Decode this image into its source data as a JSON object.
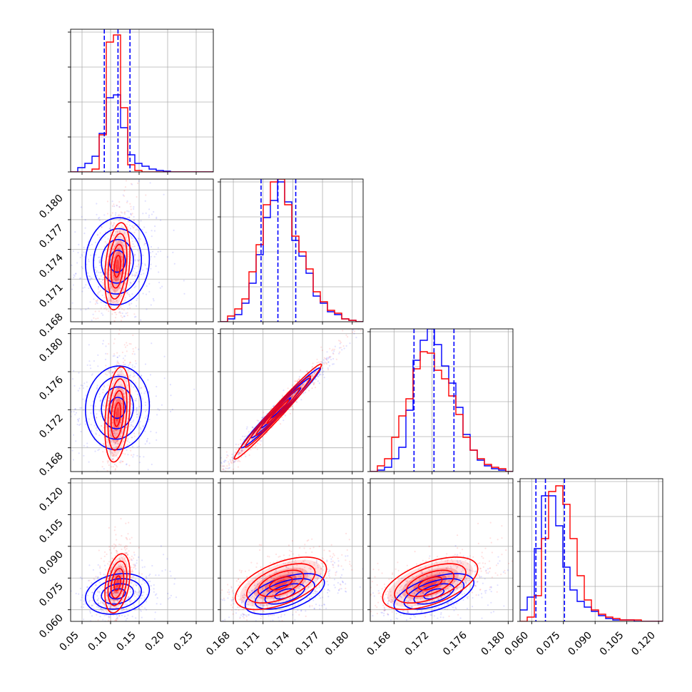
{
  "chart_data": {
    "type": "corner",
    "title": "",
    "grid": true,
    "legend": "none",
    "colors": {
      "blue": "#0000ff",
      "red": "#ff0000",
      "grid": "#b0b0b0"
    },
    "series": [
      {
        "color": "#0000ff"
      },
      {
        "color": "#ff0000"
      }
    ],
    "parameters": [
      {
        "range": [
          0.03,
          0.28
        ],
        "ticks": [
          "0.05",
          "0.10",
          "0.15",
          "0.20",
          "0.25"
        ],
        "tick_values": [
          0.05,
          0.1,
          0.15,
          0.2,
          0.25
        ],
        "quantiles": [
          0.089,
          0.113,
          0.134
        ],
        "hist_edges": [
          0.03,
          0.0425,
          0.055,
          0.0675,
          0.08,
          0.0925,
          0.105,
          0.1175,
          0.13,
          0.1425,
          0.155,
          0.1675,
          0.18,
          0.1925,
          0.205,
          0.2175,
          0.23,
          0.2425,
          0.255,
          0.2675,
          0.28
        ],
        "hist": [
          {
            "color": "blue",
            "counts": [
              0,
              0.03,
              0.06,
              0.11,
              0.27,
              0.52,
              0.54,
              0.31,
              0.12,
              0.06,
              0.04,
              0.02,
              0.01,
              0.005,
              0,
              0,
              0,
              0,
              0,
              0
            ]
          },
          {
            "color": "red",
            "counts": [
              0,
              0,
              0,
              0.02,
              0.26,
              0.91,
              0.96,
              0.45,
              0.05,
              0.01,
              0,
              0,
              0,
              0,
              0,
              0,
              0,
              0,
              0,
              0
            ]
          }
        ]
      },
      {
        "range": [
          0.1667,
          0.1811
        ],
        "ticks": [
          "0.168",
          "0.171",
          "0.174",
          "0.177",
          "0.180"
        ],
        "tick_values": [
          0.168,
          0.171,
          0.174,
          0.177,
          0.18
        ],
        "quantiles": [
          0.1708,
          0.1725,
          0.1743
        ],
        "hist_edges": [
          0.1667,
          0.16742,
          0.16814,
          0.16886,
          0.16958,
          0.1703,
          0.17102,
          0.17174,
          0.17246,
          0.17318,
          0.1739,
          0.17462,
          0.17534,
          0.17606,
          0.17678,
          0.1775,
          0.17822,
          0.17894,
          0.17966,
          0.18038,
          0.1811
        ],
        "hist": [
          {
            "color": "blue",
            "counts": [
              0,
              0.02,
              0.05,
              0.13,
              0.27,
              0.47,
              0.73,
              0.85,
              0.98,
              0.84,
              0.57,
              0.46,
              0.34,
              0.18,
              0.13,
              0.07,
              0.05,
              0.02,
              0.01,
              0
            ]
          },
          {
            "color": "red",
            "counts": [
              0,
              0.04,
              0.09,
              0.16,
              0.35,
              0.54,
              0.82,
              0.98,
              1.0,
              0.82,
              0.6,
              0.49,
              0.37,
              0.21,
              0.14,
              0.08,
              0.06,
              0.02,
              0.01,
              0
            ]
          }
        ]
      },
      {
        "range": [
          0.1655,
          0.1805
        ],
        "ticks": [
          "0.168",
          "0.172",
          "0.176",
          "0.180"
        ],
        "tick_values": [
          0.168,
          0.172,
          0.176,
          0.18
        ],
        "quantiles": [
          0.1701,
          0.1722,
          0.1743
        ],
        "hist_edges": [
          0.1655,
          0.16625,
          0.167,
          0.16775,
          0.1685,
          0.16925,
          0.17,
          0.17075,
          0.1715,
          0.17225,
          0.173,
          0.17375,
          0.1745,
          0.17525,
          0.176,
          0.17675,
          0.1775,
          0.17825,
          0.179,
          0.17975,
          0.1805
        ],
        "hist": [
          {
            "color": "blue",
            "counts": [
              0,
              0.01,
              0.03,
              0.09,
              0.17,
              0.43,
              0.78,
              0.92,
              1.0,
              0.89,
              0.74,
              0.62,
              0.45,
              0.26,
              0.15,
              0.08,
              0.04,
              0.02,
              0.01,
              0
            ]
          },
          {
            "color": "red",
            "counts": [
              0,
              0.04,
              0.09,
              0.24,
              0.39,
              0.51,
              0.72,
              0.84,
              0.83,
              0.71,
              0.65,
              0.53,
              0.4,
              0.24,
              0.15,
              0.09,
              0.05,
              0.03,
              0.02,
              0
            ]
          }
        ]
      },
      {
        "range": [
          0.0545,
          0.122
        ],
        "ticks": [
          "0.060",
          "0.075",
          "0.090",
          "0.105",
          "0.120"
        ],
        "tick_values": [
          0.06,
          0.075,
          0.09,
          0.105,
          0.12
        ],
        "quantiles": [
          0.062,
          0.0665,
          0.0755
        ],
        "hist_edges": [
          0.0545,
          0.057875,
          0.06125,
          0.064625,
          0.068,
          0.071375,
          0.07475,
          0.078125,
          0.0815,
          0.084875,
          0.08825,
          0.091625,
          0.095,
          0.098375,
          0.10175,
          0.105125,
          0.1085,
          0.111875,
          0.11525,
          0.118625,
          0.122
        ],
        "hist": [
          {
            "color": "blue",
            "counts": [
              0.08,
              0.17,
              0.51,
              0.88,
              0.88,
              0.67,
              0.38,
              0.22,
              0.14,
              0.1,
              0.07,
              0.04,
              0.02,
              0.01,
              0.01,
              0.01,
              0,
              0,
              0,
              0
            ]
          },
          {
            "color": "red",
            "counts": [
              0,
              0.03,
              0.18,
              0.58,
              0.91,
              0.95,
              0.82,
              0.58,
              0.32,
              0.15,
              0.08,
              0.05,
              0.03,
              0.02,
              0.01,
              0.01,
              0.01,
              0,
              0,
              0
            ]
          }
        ]
      }
    ],
    "pairs": [
      {
        "row": 1,
        "col": 0,
        "contours": [
          {
            "color": "blue",
            "center": [
              0.112,
              0.1728
            ],
            "sigma": [
              0.028,
              0.0022
            ],
            "corr": 0.05
          },
          {
            "color": "red",
            "center": [
              0.112,
              0.1723
            ],
            "sigma": [
              0.011,
              0.0022
            ],
            "corr": 0.3
          }
        ]
      },
      {
        "row": 2,
        "col": 0,
        "contours": [
          {
            "color": "blue",
            "center": [
              0.112,
              0.1722
            ],
            "sigma": [
              0.028,
              0.0022
            ],
            "corr": 0.05
          },
          {
            "color": "red",
            "center": [
              0.112,
              0.1715
            ],
            "sigma": [
              0.011,
              0.0025
            ],
            "corr": 0.3
          }
        ]
      },
      {
        "row": 2,
        "col": 1,
        "contours": [
          {
            "color": "blue",
            "center": [
              0.1728,
              0.1722
            ],
            "sigma": [
              0.002,
              0.0021
            ],
            "corr": 0.985
          },
          {
            "color": "red",
            "center": [
              0.1725,
              0.1718
            ],
            "sigma": [
              0.0022,
              0.0025
            ],
            "corr": 0.985
          }
        ]
      },
      {
        "row": 3,
        "col": 0,
        "contours": [
          {
            "color": "blue",
            "center": [
              0.112,
              0.0675
            ],
            "sigma": [
              0.028,
              0.0048
            ],
            "corr": 0.2
          },
          {
            "color": "red",
            "center": [
              0.112,
              0.0725
            ],
            "sigma": [
              0.011,
              0.007
            ],
            "corr": 0.35
          }
        ]
      },
      {
        "row": 3,
        "col": 1,
        "contours": [
          {
            "color": "blue",
            "center": [
              0.1732,
              0.0675
            ],
            "sigma": [
              0.002,
              0.0048
            ],
            "corr": 0.55
          },
          {
            "color": "red",
            "center": [
              0.1728,
              0.0725
            ],
            "sigma": [
              0.0023,
              0.0062
            ],
            "corr": 0.55
          }
        ]
      },
      {
        "row": 3,
        "col": 2,
        "contours": [
          {
            "color": "blue",
            "center": [
              0.1722,
              0.0675
            ],
            "sigma": [
              0.0021,
              0.0048
            ],
            "corr": 0.55
          },
          {
            "color": "red",
            "center": [
              0.1718,
              0.0725
            ],
            "sigma": [
              0.0025,
              0.0062
            ],
            "corr": 0.55
          }
        ]
      }
    ]
  }
}
